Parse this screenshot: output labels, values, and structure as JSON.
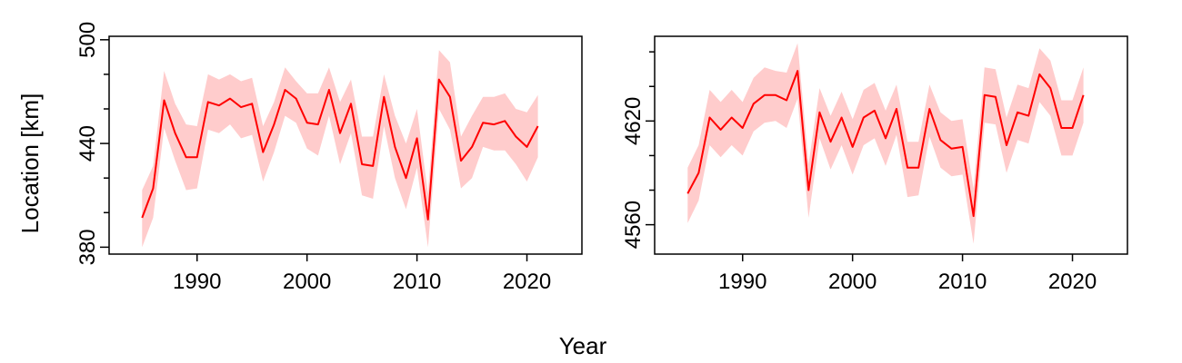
{
  "figure": {
    "ylabel": "Location [km]",
    "xlabel": "Year"
  },
  "chart_data": [
    {
      "type": "line",
      "title": "",
      "xlabel": "",
      "ylabel": "Location [km]",
      "xlim": [
        1982,
        2025
      ],
      "ylim": [
        376,
        502
      ],
      "xticks": [
        1990,
        2000,
        2010,
        2020
      ],
      "yticks_labeled": [
        380,
        440,
        500
      ],
      "yticks_minor": [
        400,
        420,
        460,
        480
      ],
      "grid": false,
      "colors": {
        "line": "#ff0000",
        "band": "#ffcccc"
      },
      "series": [
        {
          "x": [
            1985,
            1986,
            1987,
            1988,
            1989,
            1990,
            1991,
            1992,
            1993,
            1994,
            1995,
            1996,
            1997,
            1998,
            1999,
            2000,
            2001,
            2002,
            2003,
            2004,
            2005,
            2006,
            2007,
            2008,
            2009,
            2010,
            2011,
            2012,
            2013,
            2014,
            2015,
            2016,
            2017,
            2018,
            2019,
            2020,
            2021
          ],
          "y": [
            397,
            414,
            465,
            446,
            432,
            432,
            464,
            462,
            466,
            461,
            463,
            435,
            451,
            471,
            466,
            452,
            451,
            471,
            446,
            463,
            428,
            427,
            467,
            438,
            420,
            443,
            396,
            477,
            467,
            430,
            438,
            452,
            451,
            453,
            444,
            438,
            450
          ],
          "upper": [
            413,
            427,
            482,
            463,
            451,
            450,
            480,
            477,
            480,
            476,
            478,
            450,
            464,
            484,
            476,
            469,
            469,
            484,
            464,
            477,
            444,
            444,
            480,
            456,
            440,
            460,
            411,
            494,
            487,
            444,
            456,
            467,
            467,
            469,
            460,
            458,
            468
          ],
          "lower": [
            380,
            397,
            449,
            430,
            413,
            414,
            448,
            446,
            451,
            443,
            445,
            418,
            435,
            456,
            452,
            437,
            433,
            456,
            428,
            446,
            410,
            408,
            450,
            420,
            402,
            426,
            380,
            460,
            448,
            414,
            420,
            438,
            436,
            436,
            428,
            418,
            432
          ]
        }
      ]
    },
    {
      "type": "line",
      "title": "",
      "xlabel": "",
      "ylabel": "",
      "xlim": [
        1982,
        2025
      ],
      "ylim": [
        4543,
        4669
      ],
      "xticks": [
        1990,
        2000,
        2010,
        2020
      ],
      "yticks_labeled": [
        4560,
        4620
      ],
      "yticks_minor": [
        4580,
        4600,
        4640,
        4660
      ],
      "grid": false,
      "colors": {
        "line": "#ff0000",
        "band": "#ffcccc"
      },
      "series": [
        {
          "x": [
            1985,
            1986,
            1987,
            1988,
            1989,
            1990,
            1991,
            1992,
            1993,
            1994,
            1995,
            1996,
            1997,
            1998,
            1999,
            2000,
            2001,
            2002,
            2003,
            2004,
            2005,
            2006,
            2007,
            2008,
            2009,
            2010,
            2011,
            2012,
            2013,
            2014,
            2015,
            2016,
            2017,
            2018,
            2019,
            2020,
            2021
          ],
          "y": [
            4578,
            4590,
            4622,
            4615,
            4622,
            4616,
            4630,
            4635,
            4635,
            4632,
            4649,
            4580,
            4625,
            4608,
            4622,
            4605,
            4622,
            4626,
            4610,
            4627,
            4593,
            4593,
            4627,
            4609,
            4604,
            4605,
            4565,
            4635,
            4634,
            4606,
            4625,
            4623,
            4647,
            4639,
            4616,
            4616,
            4635
          ],
          "upper": [
            4593,
            4606,
            4638,
            4631,
            4638,
            4631,
            4645,
            4651,
            4649,
            4648,
            4665,
            4595,
            4639,
            4623,
            4637,
            4621,
            4638,
            4642,
            4626,
            4641,
            4608,
            4608,
            4641,
            4625,
            4620,
            4621,
            4581,
            4651,
            4650,
            4622,
            4641,
            4639,
            4662,
            4655,
            4632,
            4632,
            4651
          ],
          "lower": [
            4561,
            4574,
            4606,
            4599,
            4606,
            4600,
            4614,
            4619,
            4620,
            4616,
            4633,
            4564,
            4610,
            4592,
            4606,
            4589,
            4606,
            4610,
            4594,
            4612,
            4576,
            4577,
            4611,
            4593,
            4588,
            4589,
            4549,
            4619,
            4618,
            4590,
            4609,
            4607,
            4631,
            4623,
            4600,
            4600,
            4619
          ]
        }
      ]
    }
  ]
}
